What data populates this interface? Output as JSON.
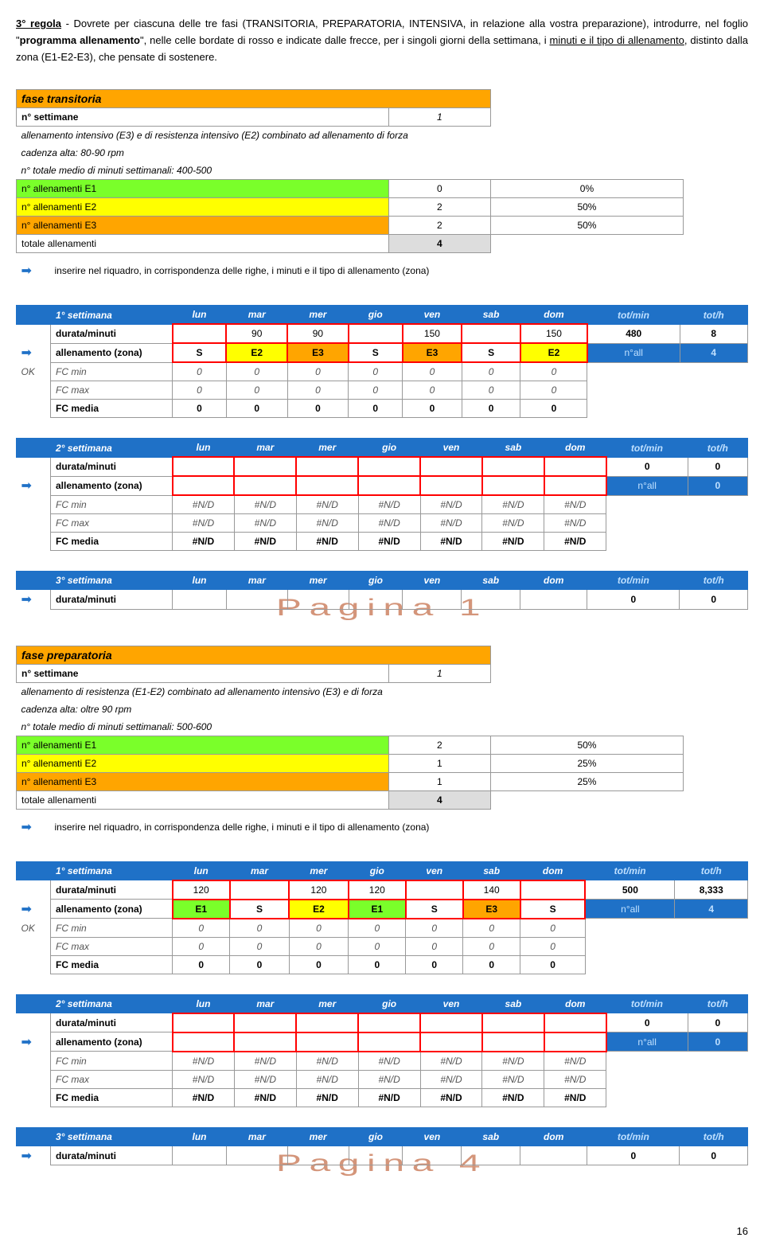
{
  "rule": {
    "title": "3° regola",
    "body_1": " - Dovrete per ciascuna delle tre fasi (TRANSITORIA, PREPARATORIA, INTENSIVA, in relazione alla vostra preparazione), introdurre, nel foglio \"",
    "programma": "programma allenamento",
    "body_2": "\", nelle celle bordate di rosso e indicate dalle frecce, per i singoli giorni della settimana, i ",
    "minuti": "minuti e il tipo di allenamento",
    "body_3": ", distinto dalla zona (E1-E2-E3), che pensate di sostenere."
  },
  "days": [
    "lun",
    "mar",
    "mer",
    "gio",
    "ven",
    "sab",
    "dom"
  ],
  "tot_min": "tot/min",
  "tot_h": "tot/h",
  "nall_label": "n°all",
  "labels": {
    "nsett": "n° settimane",
    "durata": "durata/minuti",
    "zona": "allenamento (zona)",
    "fcmin": "FC min",
    "fcmax": "FC max",
    "fcmedia": "FC media",
    "e1": "n° allenamenti E1",
    "e2": "n° allenamenti E2",
    "e3": "n° allenamenti E3",
    "totall": "totale allenamenti",
    "ok": "OK",
    "instr": "inserire nel riquadro, in corrispondenza delle righe, i minuti e il tipo di allenamento (zona)"
  },
  "transitoria": {
    "title": "fase transitoria",
    "nsett": "1",
    "desc1": "allenamento intensivo (E3) e di resistenza intensivo (E2) combinato ad allenamento di forza",
    "desc2": "cadenza alta: 80-90 rpm",
    "desc3": "n° totale medio di minuti settimanali: 400-500",
    "e1": [
      "0",
      "0%"
    ],
    "e2": [
      "2",
      "50%"
    ],
    "e3": [
      "2",
      "50%"
    ],
    "tot": "4",
    "w1": {
      "label": "1° settimana",
      "durata": [
        "",
        "90",
        "90",
        "",
        "150",
        "",
        "150",
        "480",
        "8"
      ],
      "zona": [
        "S",
        "E2",
        "E3",
        "S",
        "E3",
        "S",
        "E2"
      ],
      "nall": "4",
      "fcmin": [
        "0",
        "0",
        "0",
        "0",
        "0",
        "0",
        "0"
      ],
      "fcmax": [
        "0",
        "0",
        "0",
        "0",
        "0",
        "0",
        "0"
      ],
      "fcmedia": [
        "0",
        "0",
        "0",
        "0",
        "0",
        "0",
        "0"
      ]
    },
    "w2": {
      "label": "2° settimana",
      "durata": [
        "",
        "",
        "",
        "",
        "",
        "",
        "",
        "0",
        "0"
      ],
      "zona": [
        "",
        "",
        "",
        "",
        "",
        "",
        ""
      ],
      "nall": "0",
      "fcmin": [
        "#N/D",
        "#N/D",
        "#N/D",
        "#N/D",
        "#N/D",
        "#N/D",
        "#N/D"
      ],
      "fcmax": [
        "#N/D",
        "#N/D",
        "#N/D",
        "#N/D",
        "#N/D",
        "#N/D",
        "#N/D"
      ],
      "fcmedia": [
        "#N/D",
        "#N/D",
        "#N/D",
        "#N/D",
        "#N/D",
        "#N/D",
        "#N/D"
      ]
    },
    "w3": {
      "label": "3° settimana",
      "durata": [
        "",
        "",
        "",
        "",
        "",
        "",
        "",
        "0",
        "0"
      ]
    },
    "watermark": "Pagina 1"
  },
  "preparatoria": {
    "title": "fase preparatoria",
    "nsett": "1",
    "desc1": "allenamento di resistenza (E1-E2) combinato ad allenamento intensivo (E3) e di forza",
    "desc2": "cadenza alta: oltre 90 rpm",
    "desc3": "n° totale medio di minuti settimanali: 500-600",
    "e1": [
      "2",
      "50%"
    ],
    "e2": [
      "1",
      "25%"
    ],
    "e3": [
      "1",
      "25%"
    ],
    "tot": "4",
    "w1": {
      "label": "1° settimana",
      "durata": [
        "120",
        "",
        "120",
        "120",
        "",
        "140",
        "",
        "500",
        "8,333"
      ],
      "zona": [
        "E1",
        "S",
        "E2",
        "E1",
        "S",
        "E3",
        "S"
      ],
      "nall": "4",
      "fcmin": [
        "0",
        "0",
        "0",
        "0",
        "0",
        "0",
        "0"
      ],
      "fcmax": [
        "0",
        "0",
        "0",
        "0",
        "0",
        "0",
        "0"
      ],
      "fcmedia": [
        "0",
        "0",
        "0",
        "0",
        "0",
        "0",
        "0"
      ]
    },
    "w2": {
      "label": "2° settimana",
      "durata": [
        "",
        "",
        "",
        "",
        "",
        "",
        "",
        "0",
        "0"
      ],
      "zona": [
        "",
        "",
        "",
        "",
        "",
        "",
        ""
      ],
      "nall": "0",
      "fcmin": [
        "#N/D",
        "#N/D",
        "#N/D",
        "#N/D",
        "#N/D",
        "#N/D",
        "#N/D"
      ],
      "fcmax": [
        "#N/D",
        "#N/D",
        "#N/D",
        "#N/D",
        "#N/D",
        "#N/D",
        "#N/D"
      ],
      "fcmedia": [
        "#N/D",
        "#N/D",
        "#N/D",
        "#N/D",
        "#N/D",
        "#N/D",
        "#N/D"
      ]
    },
    "w3": {
      "label": "3° settimana",
      "durata": [
        "",
        "",
        "",
        "",
        "",
        "",
        "",
        "0",
        "0"
      ]
    },
    "watermark": "Pagina 4"
  },
  "page": "16"
}
